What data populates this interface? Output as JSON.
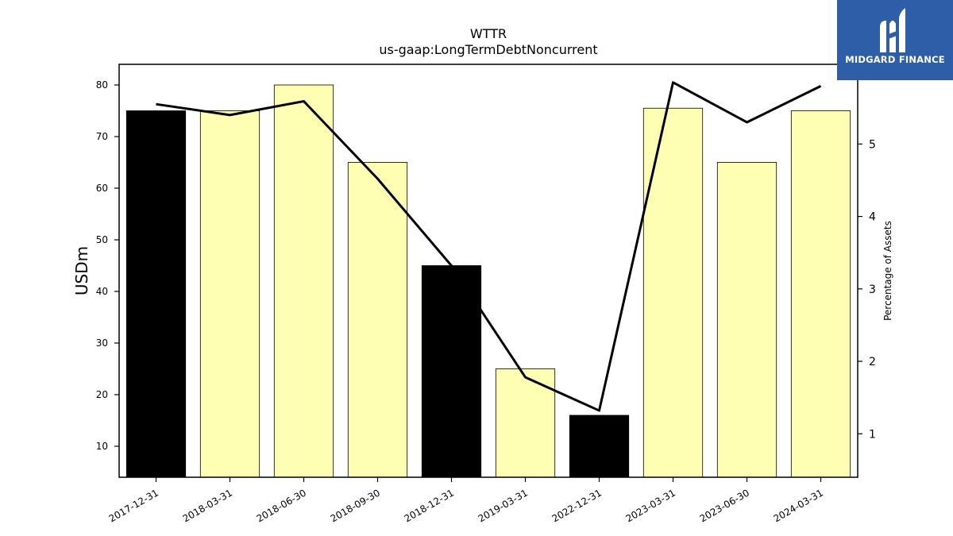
{
  "brand": {
    "name": "MIDGARD FINANCE",
    "bg_color": "#2f5ea8",
    "mark_icon": "midgard-logo-icon"
  },
  "chart_data": {
    "type": "bar",
    "title": "WTTR",
    "subtitle": "us-gaap:LongTermDebtNoncurrent",
    "ylabel": "USDm",
    "y2label": "Percentage of Assets",
    "categories": [
      "2017-12-31",
      "2018-03-31",
      "2018-06-30",
      "2018-09-30",
      "2018-12-31",
      "2019-03-31",
      "2022-12-31",
      "2023-03-31",
      "2023-06-30",
      "2024-03-31"
    ],
    "series": [
      {
        "kind": "bar",
        "axis": "left",
        "values": [
          75,
          75,
          80,
          65,
          45,
          25,
          16,
          75.5,
          65,
          75
        ],
        "colors": [
          "#000000",
          "#ffffb3",
          "#ffffb3",
          "#ffffb3",
          "#000000",
          "#ffffb3",
          "#000000",
          "#ffffb3",
          "#ffffb3",
          "#ffffb3"
        ]
      },
      {
        "kind": "line",
        "axis": "right",
        "values": [
          5.55,
          5.4,
          5.59,
          4.52,
          3.32,
          1.78,
          1.32,
          5.85,
          5.3,
          5.8
        ],
        "color": "#000000"
      }
    ],
    "ylim": [
      4,
      84
    ],
    "yticks": [
      10,
      20,
      30,
      40,
      50,
      60,
      70,
      80
    ],
    "y2lim": [
      0.4,
      6.1
    ],
    "y2ticks": [
      1,
      2,
      3,
      4,
      5
    ],
    "grid": false,
    "legend": "none"
  }
}
